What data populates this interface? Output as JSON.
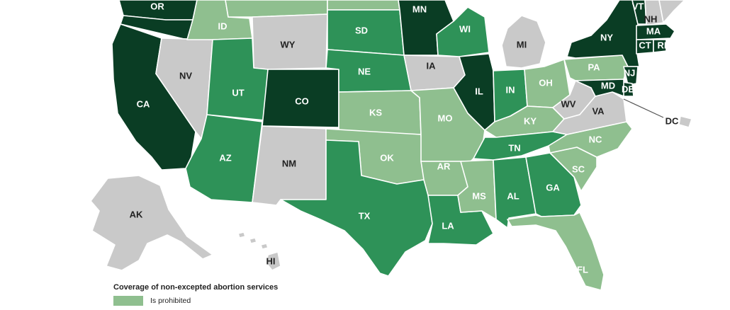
{
  "legend": {
    "title": "Coverage of non-excepted abortion services",
    "items": [
      {
        "label": "Is prohibited",
        "category": "prohibited",
        "color": "#8fbf8f"
      }
    ]
  },
  "categories": {
    "prohibited": "#8fbf8f",
    "medium": "#2e9258",
    "dark": "#0a3d24",
    "none": "#c9c9c9"
  },
  "states": [
    {
      "id": "OR",
      "label": "OR",
      "category": "dark"
    },
    {
      "id": "CA",
      "label": "CA",
      "category": "dark"
    },
    {
      "id": "WA",
      "label": "",
      "category": "dark"
    },
    {
      "id": "NV",
      "label": "NV",
      "category": "none"
    },
    {
      "id": "ID",
      "label": "ID",
      "category": "prohibited"
    },
    {
      "id": "MT",
      "label": "",
      "category": "prohibited"
    },
    {
      "id": "WY",
      "label": "WY",
      "category": "none"
    },
    {
      "id": "UT",
      "label": "UT",
      "category": "medium"
    },
    {
      "id": "AZ",
      "label": "AZ",
      "category": "medium"
    },
    {
      "id": "CO",
      "label": "CO",
      "category": "dark"
    },
    {
      "id": "NM",
      "label": "NM",
      "category": "none"
    },
    {
      "id": "ND",
      "label": "",
      "category": "prohibited"
    },
    {
      "id": "SD",
      "label": "SD",
      "category": "medium"
    },
    {
      "id": "NE",
      "label": "NE",
      "category": "medium"
    },
    {
      "id": "KS",
      "label": "KS",
      "category": "prohibited"
    },
    {
      "id": "OK",
      "label": "OK",
      "category": "prohibited"
    },
    {
      "id": "TX",
      "label": "TX",
      "category": "medium"
    },
    {
      "id": "MN",
      "label": "MN",
      "category": "dark"
    },
    {
      "id": "IA",
      "label": "IA",
      "category": "none"
    },
    {
      "id": "MO",
      "label": "MO",
      "category": "prohibited"
    },
    {
      "id": "AR",
      "label": "AR",
      "category": "prohibited"
    },
    {
      "id": "LA",
      "label": "LA",
      "category": "medium"
    },
    {
      "id": "WI",
      "label": "WI",
      "category": "medium"
    },
    {
      "id": "IL",
      "label": "IL",
      "category": "dark"
    },
    {
      "id": "MS",
      "label": "MS",
      "category": "prohibited"
    },
    {
      "id": "MI",
      "label": "MI",
      "category": "none"
    },
    {
      "id": "IN",
      "label": "IN",
      "category": "medium"
    },
    {
      "id": "KY",
      "label": "KY",
      "category": "prohibited"
    },
    {
      "id": "TN",
      "label": "TN",
      "category": "medium"
    },
    {
      "id": "AL",
      "label": "AL",
      "category": "medium"
    },
    {
      "id": "GA",
      "label": "GA",
      "category": "medium"
    },
    {
      "id": "FL",
      "label": "FL",
      "category": "prohibited"
    },
    {
      "id": "OH",
      "label": "OH",
      "category": "prohibited"
    },
    {
      "id": "WV",
      "label": "WV",
      "category": "none"
    },
    {
      "id": "VA",
      "label": "VA",
      "category": "none"
    },
    {
      "id": "NC",
      "label": "NC",
      "category": "prohibited"
    },
    {
      "id": "SC",
      "label": "SC",
      "category": "prohibited"
    },
    {
      "id": "PA",
      "label": "PA",
      "category": "prohibited"
    },
    {
      "id": "NY",
      "label": "NY",
      "category": "dark"
    },
    {
      "id": "VT",
      "label": "VT",
      "category": "dark"
    },
    {
      "id": "NH",
      "label": "NH",
      "category": "none"
    },
    {
      "id": "ME",
      "label": "",
      "category": "none"
    },
    {
      "id": "MA",
      "label": "MA",
      "category": "dark"
    },
    {
      "id": "CT",
      "label": "CT",
      "category": "dark"
    },
    {
      "id": "RI",
      "label": "RI",
      "category": "dark"
    },
    {
      "id": "NJ",
      "label": "NJ",
      "category": "dark"
    },
    {
      "id": "DE",
      "label": "DE",
      "category": "dark"
    },
    {
      "id": "MD",
      "label": "MD",
      "category": "dark"
    },
    {
      "id": "DC",
      "label": "DC",
      "category": "none"
    },
    {
      "id": "AK",
      "label": "AK",
      "category": "none"
    },
    {
      "id": "HI",
      "label": "HI",
      "category": "none"
    }
  ]
}
